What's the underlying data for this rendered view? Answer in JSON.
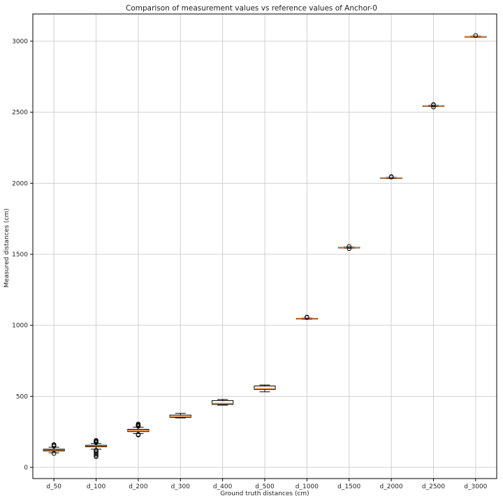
{
  "chart_data": {
    "type": "box",
    "title": "Comparison of measurement values vs reference values of Anchor-0",
    "xlabel": "Ground truth distances (cm)",
    "ylabel": "Measured distances (cm)",
    "ylim": [
      -95,
      3185
    ],
    "yticks": [
      0,
      500,
      1000,
      1500,
      2000,
      2500,
      3000
    ],
    "grid": true,
    "categories": [
      "d_50",
      "d_100",
      "d_200",
      "d_300",
      "d_400",
      "d_500",
      "d_1000",
      "d_1500",
      "d_2000",
      "d_2500",
      "d_3000"
    ],
    "series": [
      {
        "name": "d_50",
        "whisker_low": 103,
        "q1": 116,
        "median": 122,
        "q3": 128,
        "whisker_high": 142,
        "outliers_high": [
          150,
          155,
          160
        ],
        "outliers_low": [
          98
        ]
      },
      {
        "name": "d_100",
        "whisker_low": 128,
        "q1": 145,
        "median": 151,
        "q3": 156,
        "whisker_high": 168,
        "outliers_high": [
          175,
          180,
          185,
          190
        ],
        "outliers_low": [
          75,
          85,
          95,
          105,
          115,
          120
        ]
      },
      {
        "name": "d_200",
        "whisker_low": 238,
        "q1": 252,
        "median": 260,
        "q3": 268,
        "whisker_high": 283,
        "outliers_high": [
          290,
          295,
          300,
          305
        ],
        "outliers_low": [
          228,
          232
        ]
      },
      {
        "name": "d_300",
        "whisker_low": 348,
        "q1": 352,
        "median": 357,
        "q3": 368,
        "whisker_high": 380,
        "outliers_high": [],
        "outliers_low": []
      },
      {
        "name": "d_400",
        "whisker_low": 438,
        "q1": 443,
        "median": 450,
        "q3": 470,
        "whisker_high": 478,
        "outliers_high": [],
        "outliers_low": []
      },
      {
        "name": "d_500",
        "whisker_low": 532,
        "q1": 548,
        "median": 553,
        "q3": 573,
        "whisker_high": 580,
        "outliers_high": [],
        "outliers_low": []
      },
      {
        "name": "d_1000",
        "whisker_low": 1043,
        "q1": 1045,
        "median": 1047,
        "q3": 1049,
        "whisker_high": 1051,
        "outliers_high": [
          1055,
          1058
        ],
        "outliers_low": []
      },
      {
        "name": "d_1500",
        "whisker_low": 1543,
        "q1": 1545,
        "median": 1547,
        "q3": 1549,
        "whisker_high": 1551,
        "outliers_high": [
          1555
        ],
        "outliers_low": [
          1540
        ]
      },
      {
        "name": "d_2000",
        "whisker_low": 2033,
        "q1": 2035,
        "median": 2037,
        "q3": 2039,
        "whisker_high": 2041,
        "outliers_high": [
          2044,
          2047
        ],
        "outliers_low": []
      },
      {
        "name": "d_2500",
        "whisker_low": 2540,
        "q1": 2542,
        "median": 2544,
        "q3": 2546,
        "whisker_high": 2548,
        "outliers_high": [
          2551,
          2554
        ],
        "outliers_low": [
          2537
        ]
      },
      {
        "name": "d_3000",
        "whisker_low": 3028,
        "q1": 3030,
        "median": 3031,
        "q3": 3033,
        "whisker_high": 3035,
        "outliers_high": [
          3040
        ],
        "outliers_low": []
      }
    ]
  },
  "colors": {
    "box_edge": "#000000",
    "median": "#e07b27",
    "grid": "#d0d0d0",
    "axis": "#000000"
  }
}
